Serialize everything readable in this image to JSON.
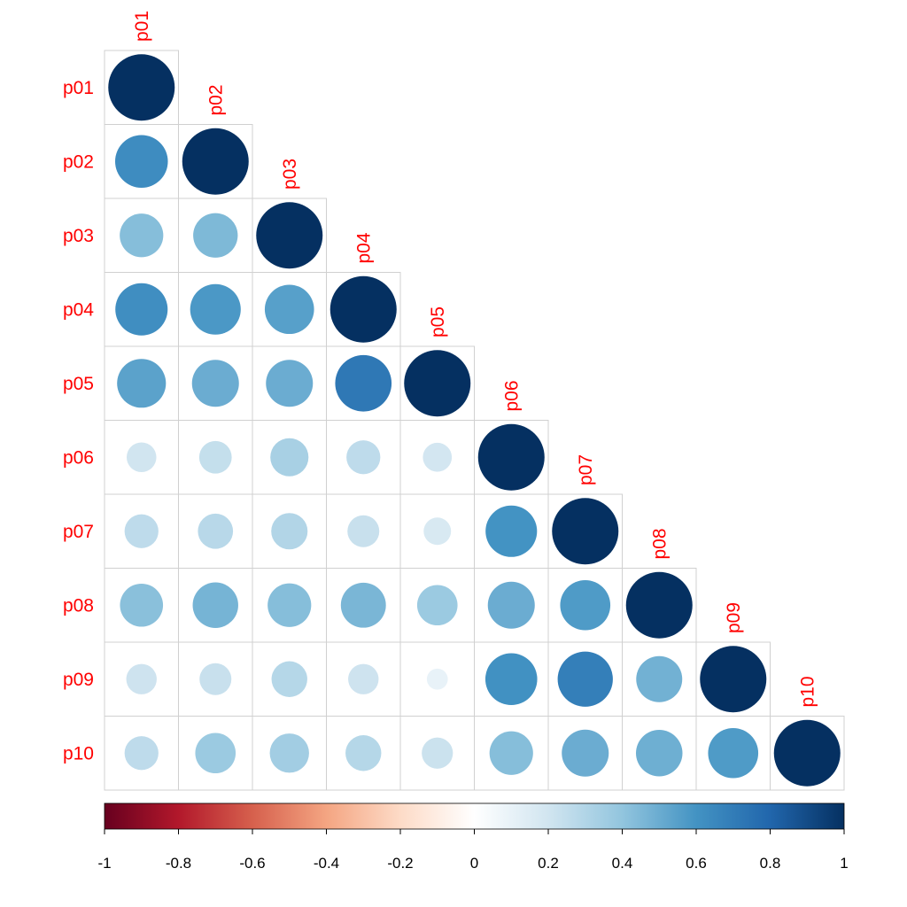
{
  "chart_data": {
    "type": "heatmap",
    "subtype": "correlation-lower-triangle-circles",
    "variables": [
      "p01",
      "p02",
      "p03",
      "p04",
      "p05",
      "p06",
      "p07",
      "p08",
      "p09",
      "p10"
    ],
    "matrix": [
      [
        1.0
      ],
      [
        0.63,
        1.0
      ],
      [
        0.43,
        0.45,
        1.0
      ],
      [
        0.62,
        0.58,
        0.55,
        1.0
      ],
      [
        0.54,
        0.5,
        0.5,
        0.72,
        1.0
      ],
      [
        0.2,
        0.24,
        0.33,
        0.26,
        0.19,
        1.0
      ],
      [
        0.26,
        0.28,
        0.3,
        0.23,
        0.17,
        0.6,
        1.0
      ],
      [
        0.42,
        0.47,
        0.43,
        0.46,
        0.37,
        0.5,
        0.57,
        1.0
      ],
      [
        0.21,
        0.23,
        0.29,
        0.21,
        0.1,
        0.61,
        0.69,
        0.48,
        1.0
      ],
      [
        0.26,
        0.37,
        0.35,
        0.29,
        0.22,
        0.43,
        0.5,
        0.49,
        0.57,
        1.0
      ]
    ],
    "color_scale": {
      "min": -1,
      "max": 1,
      "ticks": [
        "-1",
        "-0.8",
        "-0.6",
        "-0.4",
        "-0.2",
        "0",
        "0.2",
        "0.4",
        "0.6",
        "0.8",
        "1"
      ],
      "colors": [
        "#67001F",
        "#B2182B",
        "#D6604D",
        "#F4A582",
        "#FDDBC7",
        "#FFFFFF",
        "#D1E5F0",
        "#92C5DE",
        "#4393C3",
        "#2166AC",
        "#053061"
      ]
    },
    "label_color": "#ff0000",
    "grid": true,
    "legend_position": "bottom"
  }
}
